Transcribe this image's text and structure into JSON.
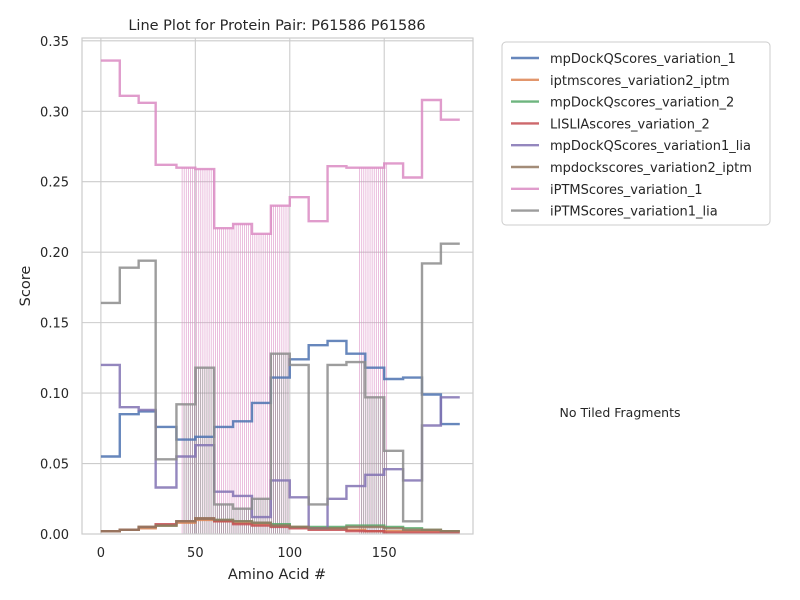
{
  "chart_data": {
    "type": "line",
    "title": "Line Plot for Protein Pair: P61586 P61586",
    "xlabel": "Amino Acid #",
    "ylabel": "Score",
    "xlim": [
      -10,
      197
    ],
    "ylim": [
      0,
      0.352
    ],
    "x_ticks": [
      0,
      50,
      100,
      150
    ],
    "x_tick_labels": [
      "0",
      "50",
      "100",
      "150"
    ],
    "y_ticks": [
      0.0,
      0.05,
      0.1,
      0.15,
      0.2,
      0.25,
      0.3,
      0.35
    ],
    "y_tick_labels": [
      "0.00",
      "0.05",
      "0.10",
      "0.15",
      "0.20",
      "0.25",
      "0.30",
      "0.35"
    ],
    "grid": true,
    "legend_position": "outside-right-top",
    "side_note": "No Tiled Fragments",
    "series": [
      {
        "name": "mpDockQScores_variation_1",
        "color": "#4c72b0",
        "x": [
          0,
          10,
          10,
          20,
          20,
          29,
          29,
          40,
          40,
          50,
          50,
          60,
          60,
          70,
          70,
          80,
          80,
          90,
          90,
          100,
          100,
          110,
          110,
          120,
          120,
          130,
          130,
          140,
          140,
          150,
          150,
          160,
          160,
          170,
          170,
          180,
          180,
          190
        ],
        "y": [
          0.055,
          0.055,
          0.085,
          0.085,
          0.087,
          0.087,
          0.076,
          0.076,
          0.067,
          0.067,
          0.069,
          0.069,
          0.076,
          0.076,
          0.08,
          0.08,
          0.093,
          0.093,
          0.111,
          0.111,
          0.124,
          0.124,
          0.134,
          0.134,
          0.137,
          0.137,
          0.128,
          0.128,
          0.118,
          0.118,
          0.11,
          0.11,
          0.111,
          0.111,
          0.099,
          0.099,
          0.078,
          0.078
        ]
      },
      {
        "name": "iptmscores_variation2_iptm",
        "color": "#dd8452",
        "x": [
          0,
          10,
          10,
          20,
          20,
          29,
          29,
          40,
          40,
          50,
          50,
          60,
          60,
          70,
          70,
          80,
          80,
          90,
          90,
          100,
          100,
          110,
          110,
          120,
          120,
          130,
          130,
          140,
          140,
          150,
          150,
          160,
          160,
          170,
          170,
          180,
          180,
          190
        ],
        "y": [
          0.002,
          0.002,
          0.003,
          0.003,
          0.004,
          0.004,
          0.006,
          0.006,
          0.008,
          0.008,
          0.01,
          0.01,
          0.009,
          0.009,
          0.008,
          0.008,
          0.007,
          0.007,
          0.006,
          0.006,
          0.005,
          0.005,
          0.004,
          0.004,
          0.004,
          0.004,
          0.003,
          0.003,
          0.002,
          0.002,
          0.002,
          0.002,
          0.002,
          0.002,
          0.002,
          0.002,
          0.002,
          0.002
        ]
      },
      {
        "name": "mpDockQscores_variation_2",
        "color": "#55a868",
        "x": [
          0,
          10,
          10,
          20,
          20,
          29,
          29,
          40,
          40,
          50,
          50,
          60,
          60,
          70,
          70,
          80,
          80,
          90,
          90,
          100,
          100,
          110,
          110,
          120,
          120,
          130,
          130,
          140,
          140,
          150,
          150,
          160,
          160,
          170,
          170,
          180,
          180,
          190
        ],
        "y": [
          0.002,
          0.002,
          0.003,
          0.003,
          0.005,
          0.005,
          0.006,
          0.006,
          0.009,
          0.009,
          0.011,
          0.011,
          0.01,
          0.01,
          0.009,
          0.009,
          0.008,
          0.008,
          0.007,
          0.007,
          0.005,
          0.005,
          0.005,
          0.005,
          0.005,
          0.005,
          0.006,
          0.006,
          0.006,
          0.006,
          0.005,
          0.005,
          0.004,
          0.004,
          0.003,
          0.003,
          0.002,
          0.002
        ]
      },
      {
        "name": "LISLIAscores_variation_2",
        "color": "#c44e52",
        "x": [
          0,
          10,
          10,
          20,
          20,
          29,
          29,
          40,
          40,
          50,
          50,
          60,
          60,
          70,
          70,
          80,
          80,
          90,
          90,
          100,
          100,
          110,
          110,
          120,
          120,
          130,
          130,
          140,
          140,
          150,
          150,
          160,
          160,
          170,
          170,
          180,
          180,
          190
        ],
        "y": [
          0.002,
          0.002,
          0.003,
          0.003,
          0.005,
          0.005,
          0.007,
          0.007,
          0.009,
          0.009,
          0.011,
          0.011,
          0.009,
          0.009,
          0.007,
          0.007,
          0.006,
          0.006,
          0.005,
          0.005,
          0.004,
          0.004,
          0.003,
          0.003,
          0.003,
          0.003,
          0.002,
          0.002,
          0.002,
          0.002,
          0.001,
          0.001,
          0.001,
          0.001,
          0.001,
          0.001,
          0.001,
          0.001
        ]
      },
      {
        "name": "mpDockQScores_variation1_lia",
        "color": "#8172b3",
        "x": [
          0,
          10,
          10,
          20,
          20,
          29,
          29,
          40,
          40,
          50,
          50,
          60,
          60,
          70,
          70,
          80,
          80,
          90,
          90,
          100,
          100,
          110,
          110,
          120,
          120,
          130,
          130,
          140,
          140,
          150,
          150,
          160,
          160,
          170,
          170,
          180,
          180,
          190
        ],
        "y": [
          0.12,
          0.12,
          0.09,
          0.09,
          0.088,
          0.088,
          0.033,
          0.033,
          0.055,
          0.055,
          0.063,
          0.063,
          0.03,
          0.03,
          0.027,
          0.027,
          0.012,
          0.012,
          0.038,
          0.038,
          0.026,
          0.026,
          0.004,
          0.004,
          0.025,
          0.025,
          0.034,
          0.034,
          0.042,
          0.042,
          0.046,
          0.046,
          0.038,
          0.038,
          0.077,
          0.077,
          0.097,
          0.097
        ]
      },
      {
        "name": "mpdockscores_variation2_iptm",
        "color": "#937860",
        "x": [
          0,
          10,
          10,
          20,
          20,
          29,
          29,
          40,
          40,
          50,
          50,
          60,
          60,
          70,
          70,
          80,
          80,
          90,
          90,
          100,
          100,
          110,
          110,
          120,
          120,
          130,
          130,
          140,
          140,
          150,
          150,
          160,
          160,
          170,
          170,
          180,
          180,
          190
        ],
        "y": [
          0.002,
          0.002,
          0.003,
          0.003,
          0.005,
          0.005,
          0.006,
          0.006,
          0.009,
          0.009,
          0.011,
          0.011,
          0.01,
          0.01,
          0.009,
          0.009,
          0.008,
          0.008,
          0.006,
          0.006,
          0.005,
          0.005,
          0.004,
          0.004,
          0.004,
          0.004,
          0.005,
          0.005,
          0.005,
          0.005,
          0.004,
          0.004,
          0.003,
          0.003,
          0.003,
          0.003,
          0.002,
          0.002
        ]
      },
      {
        "name": "iPTMScores_variation_1",
        "color": "#da8bc3",
        "x": [
          0,
          10,
          10,
          20,
          20,
          29,
          29,
          40,
          40,
          50,
          50,
          60,
          60,
          70,
          70,
          80,
          80,
          90,
          90,
          100,
          100,
          110,
          110,
          120,
          120,
          130,
          130,
          140,
          140,
          150,
          150,
          160,
          160,
          170,
          170,
          180,
          180,
          190
        ],
        "y": [
          0.336,
          0.336,
          0.311,
          0.311,
          0.306,
          0.306,
          0.262,
          0.262,
          0.26,
          0.26,
          0.259,
          0.259,
          0.217,
          0.217,
          0.22,
          0.22,
          0.213,
          0.213,
          0.233,
          0.233,
          0.239,
          0.239,
          0.222,
          0.222,
          0.261,
          0.261,
          0.26,
          0.26,
          0.26,
          0.26,
          0.263,
          0.263,
          0.253,
          0.253,
          0.308,
          0.308,
          0.294,
          0.294
        ]
      },
      {
        "name": "iPTMScores_variation1_lia",
        "color": "#8c8c8c",
        "x": [
          0,
          10,
          10,
          20,
          20,
          29,
          29,
          40,
          40,
          50,
          50,
          60,
          60,
          70,
          70,
          80,
          80,
          90,
          90,
          100,
          100,
          110,
          110,
          120,
          120,
          130,
          130,
          140,
          140,
          150,
          150,
          160,
          160,
          170,
          170,
          180,
          180,
          190
        ],
        "y": [
          0.164,
          0.164,
          0.189,
          0.189,
          0.194,
          0.194,
          0.053,
          0.053,
          0.092,
          0.092,
          0.118,
          0.118,
          0.021,
          0.021,
          0.018,
          0.018,
          0.025,
          0.025,
          0.128,
          0.128,
          0.12,
          0.12,
          0.021,
          0.021,
          0.12,
          0.12,
          0.122,
          0.122,
          0.097,
          0.097,
          0.059,
          0.059,
          0.009,
          0.009,
          0.192,
          0.192,
          0.206,
          0.206
        ]
      }
    ],
    "fill_bands": [
      {
        "color": "#da8bc3",
        "series_index": 6,
        "x_ranges": [
          [
            43,
            100
          ],
          [
            137,
            152
          ]
        ],
        "step": 1.1
      },
      {
        "color": "#8c8c8c",
        "series_index": 7,
        "x_ranges": [
          [
            44,
            100
          ],
          [
            138,
            152
          ]
        ],
        "step": 1.1
      }
    ]
  }
}
